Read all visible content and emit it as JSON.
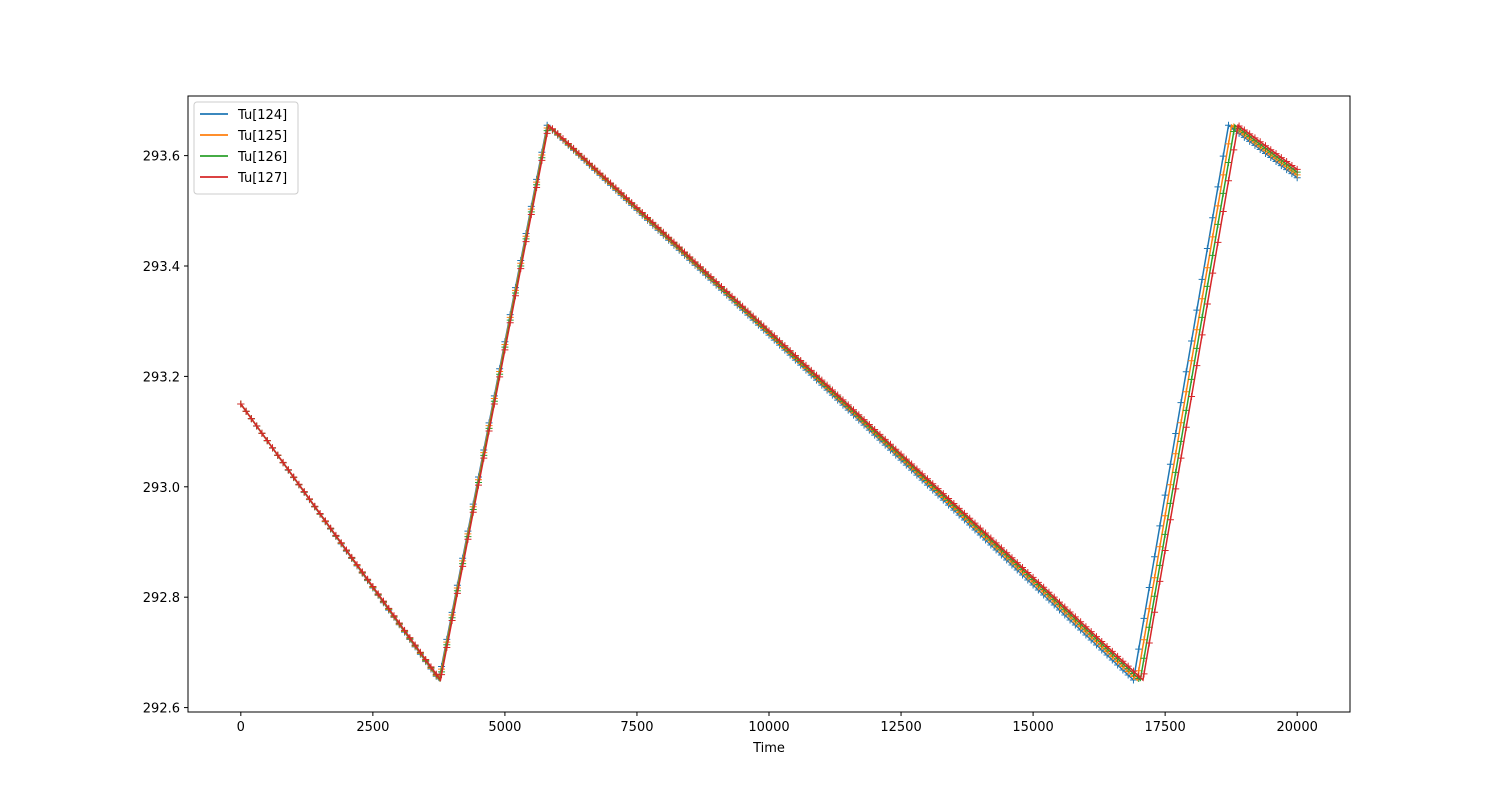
{
  "chart_data": {
    "type": "line",
    "title": "",
    "xlabel": "Time",
    "ylabel": "",
    "xlim": [
      -1000,
      21000
    ],
    "ylim": [
      292.592,
      293.708
    ],
    "xticks": [
      0,
      2500,
      5000,
      7500,
      10000,
      12500,
      15000,
      17500,
      20000
    ],
    "yticks": [
      292.6,
      292.8,
      293.0,
      293.2,
      293.4,
      293.6
    ],
    "ytick_labels": [
      "292.6",
      "292.8",
      "293.0",
      "293.2",
      "293.4",
      "293.6"
    ],
    "grid": false,
    "legend_position": "upper-left",
    "marker": "+",
    "marker_step": 100,
    "series": [
      {
        "name": "Tu[124]",
        "color": "#1f77b4",
        "x": [
          0,
          3750,
          5800,
          16900,
          18700,
          20000
        ],
        "y": [
          293.15,
          292.65,
          293.655,
          292.65,
          293.655,
          293.56
        ]
      },
      {
        "name": "Tu[125]",
        "color": "#ff7f0e",
        "x": [
          0,
          3760,
          5810,
          16970,
          18760,
          20000
        ],
        "y": [
          293.15,
          292.65,
          293.655,
          292.65,
          293.655,
          293.565
        ]
      },
      {
        "name": "Tu[126]",
        "color": "#2ca02c",
        "x": [
          0,
          3770,
          5820,
          17030,
          18820,
          20000
        ],
        "y": [
          293.15,
          292.65,
          293.655,
          292.65,
          293.655,
          293.57
        ]
      },
      {
        "name": "Tu[127]",
        "color": "#d62728",
        "x": [
          0,
          3780,
          5830,
          17080,
          18880,
          20000
        ],
        "y": [
          293.15,
          292.65,
          293.655,
          292.65,
          293.655,
          293.575
        ]
      }
    ]
  }
}
